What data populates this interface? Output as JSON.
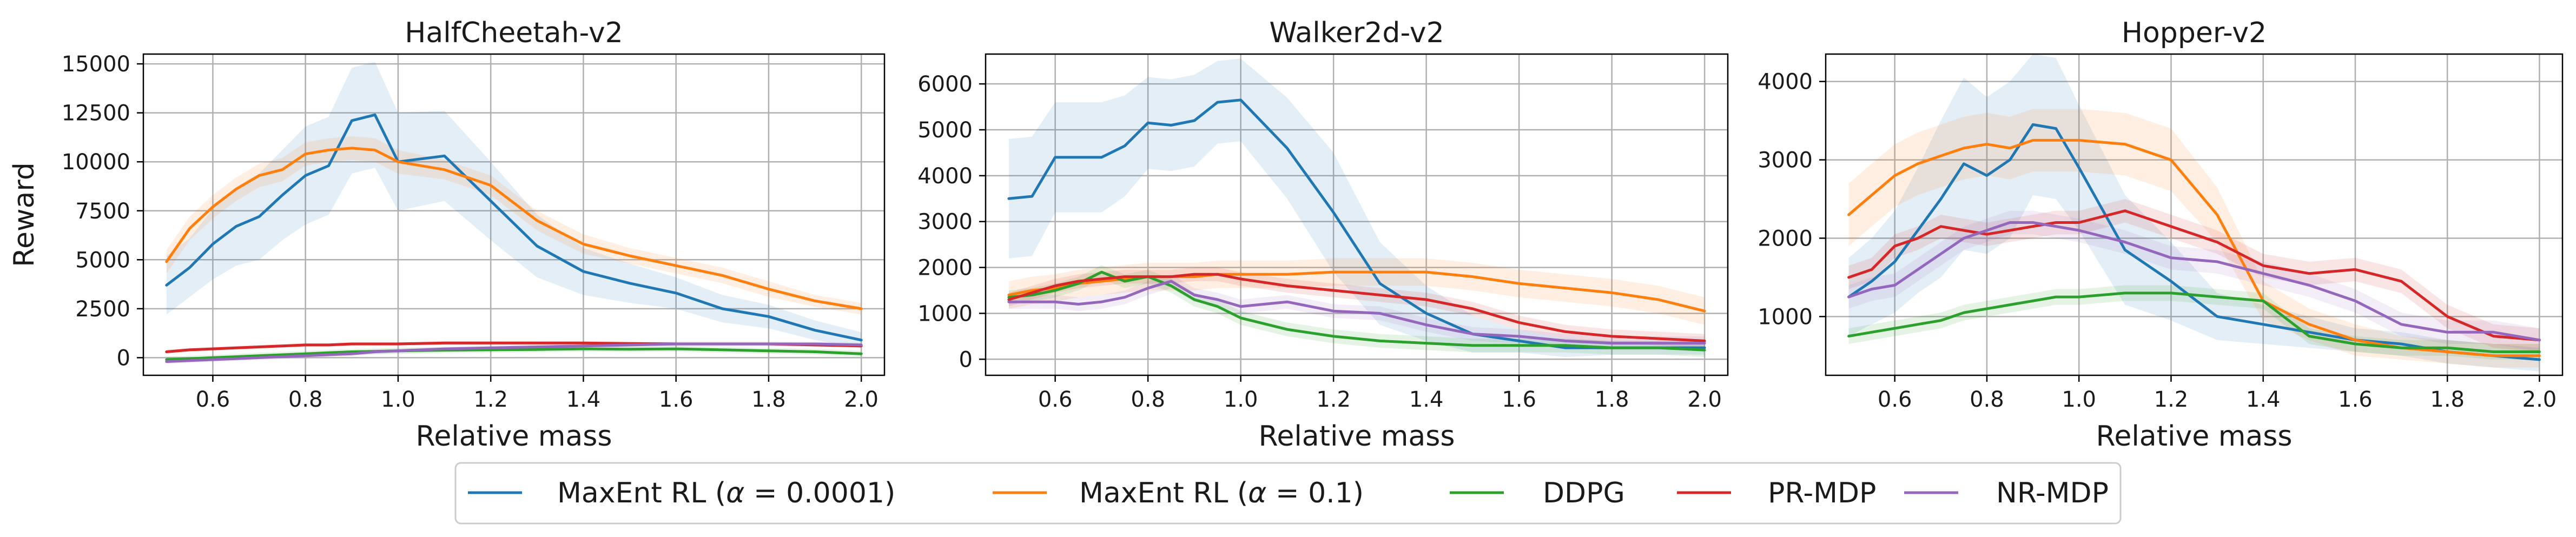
{
  "chart_data": [
    {
      "type": "line",
      "title": "HalfCheetah-v2",
      "xlabel": "Relative mass",
      "ylabel": "Reward",
      "xlim": [
        0.45,
        2.05
      ],
      "ylim": [
        -900,
        15500
      ],
      "xticks": [
        0.6,
        0.8,
        1.0,
        1.2,
        1.4,
        1.6,
        1.8,
        2.0
      ],
      "xtick_labels": [
        "0.6",
        "0.8",
        "1.0",
        "1.2",
        "1.4",
        "1.6",
        "1.8",
        "2.0"
      ],
      "yticks": [
        0,
        2500,
        5000,
        7500,
        10000,
        12500,
        15000
      ],
      "ytick_labels": [
        "0",
        "2500",
        "5000",
        "7500",
        "10000",
        "12500",
        "15000"
      ],
      "grid": true,
      "x": [
        0.5,
        0.55,
        0.6,
        0.65,
        0.7,
        0.75,
        0.8,
        0.85,
        0.9,
        0.95,
        1.0,
        1.1,
        1.2,
        1.3,
        1.4,
        1.5,
        1.6,
        1.7,
        1.8,
        1.9,
        2.0
      ],
      "series": [
        {
          "name": "MaxEnt RL (α = 0.0001)",
          "values": [
            3700,
            4600,
            5800,
            6700,
            7200,
            8300,
            9300,
            9800,
            12100,
            12400,
            10000,
            10300,
            8000,
            5700,
            4400,
            3800,
            3300,
            2500,
            2100,
            1400,
            900
          ],
          "band": [
            1500,
            1500,
            1800,
            2000,
            2200,
            2300,
            2500,
            2500,
            2700,
            2700,
            2500,
            2300,
            2000,
            1600,
            1200,
            1000,
            800,
            700,
            600,
            500,
            400
          ]
        },
        {
          "name": "MaxEnt RL (α = 0.1)",
          "values": [
            4900,
            6600,
            7700,
            8600,
            9300,
            9600,
            10400,
            10600,
            10700,
            10600,
            10000,
            9600,
            8800,
            7000,
            5800,
            5200,
            4700,
            4200,
            3500,
            2900,
            2500
          ],
          "band": [
            600,
            600,
            600,
            600,
            600,
            600,
            600,
            600,
            600,
            600,
            600,
            500,
            500,
            500,
            500,
            400,
            400,
            400,
            400,
            300,
            300
          ]
        },
        {
          "name": "DDPG",
          "values": [
            -100,
            -50,
            0,
            50,
            100,
            150,
            200,
            250,
            300,
            320,
            350,
            380,
            400,
            420,
            450,
            430,
            450,
            400,
            350,
            300,
            200
          ],
          "band": [
            150,
            150,
            150,
            150,
            150,
            150,
            150,
            150,
            150,
            150,
            150,
            150,
            150,
            150,
            150,
            150,
            150,
            150,
            150,
            150,
            150
          ]
        },
        {
          "name": "PR-MDP",
          "values": [
            300,
            400,
            450,
            500,
            550,
            600,
            650,
            650,
            700,
            700,
            700,
            750,
            750,
            750,
            750,
            720,
            700,
            700,
            700,
            650,
            600
          ],
          "band": [
            100,
            100,
            100,
            100,
            100,
            100,
            100,
            100,
            100,
            100,
            100,
            100,
            100,
            100,
            100,
            100,
            100,
            100,
            100,
            100,
            100
          ]
        },
        {
          "name": "NR-MDP",
          "values": [
            -200,
            -150,
            -100,
            -50,
            0,
            50,
            100,
            150,
            200,
            300,
            350,
            450,
            500,
            550,
            600,
            650,
            700,
            700,
            700,
            700,
            650
          ],
          "band": [
            120,
            120,
            120,
            120,
            120,
            120,
            120,
            120,
            120,
            120,
            120,
            120,
            120,
            120,
            120,
            120,
            120,
            120,
            120,
            120,
            120
          ]
        }
      ]
    },
    {
      "type": "line",
      "title": "Walker2d-v2",
      "xlabel": "Relative mass",
      "ylabel": "",
      "xlim": [
        0.45,
        2.05
      ],
      "ylim": [
        -350,
        6650
      ],
      "xticks": [
        0.6,
        0.8,
        1.0,
        1.2,
        1.4,
        1.6,
        1.8,
        2.0
      ],
      "xtick_labels": [
        "0.6",
        "0.8",
        "1.0",
        "1.2",
        "1.4",
        "1.6",
        "1.8",
        "2.0"
      ],
      "yticks": [
        0,
        1000,
        2000,
        3000,
        4000,
        5000,
        6000
      ],
      "ytick_labels": [
        "0",
        "1000",
        "2000",
        "3000",
        "4000",
        "5000",
        "6000"
      ],
      "grid": true,
      "x": [
        0.5,
        0.55,
        0.6,
        0.65,
        0.7,
        0.75,
        0.8,
        0.85,
        0.9,
        0.95,
        1.0,
        1.1,
        1.2,
        1.3,
        1.4,
        1.5,
        1.6,
        1.7,
        1.8,
        1.9,
        2.0
      ],
      "series": [
        {
          "name": "MaxEnt RL (α = 0.0001)",
          "values": [
            3500,
            3550,
            4400,
            4400,
            4400,
            4650,
            5150,
            5100,
            5200,
            5600,
            5650,
            4600,
            3200,
            1650,
            1000,
            550,
            400,
            250,
            250,
            250,
            250
          ],
          "band": [
            1300,
            1300,
            1200,
            1200,
            1200,
            1100,
            1000,
            1000,
            1000,
            900,
            900,
            1100,
            1300,
            900,
            600,
            400,
            250,
            200,
            150,
            150,
            150
          ]
        },
        {
          "name": "MaxEnt RL (α = 0.1)",
          "values": [
            1400,
            1500,
            1550,
            1650,
            1700,
            1750,
            1800,
            1800,
            1800,
            1850,
            1850,
            1850,
            1900,
            1900,
            1900,
            1800,
            1650,
            1550,
            1450,
            1300,
            1050
          ],
          "band": [
            300,
            300,
            300,
            300,
            300,
            300,
            300,
            300,
            300,
            300,
            300,
            300,
            300,
            300,
            300,
            300,
            300,
            300,
            300,
            300,
            300
          ]
        },
        {
          "name": "DDPG",
          "values": [
            1350,
            1400,
            1500,
            1650,
            1900,
            1700,
            1800,
            1600,
            1300,
            1150,
            900,
            650,
            500,
            400,
            350,
            300,
            300,
            300,
            250,
            250,
            200
          ],
          "band": [
            150,
            150,
            150,
            150,
            150,
            150,
            150,
            150,
            150,
            150,
            150,
            150,
            150,
            150,
            150,
            150,
            150,
            150,
            150,
            150,
            150
          ]
        },
        {
          "name": "PR-MDP",
          "values": [
            1300,
            1450,
            1600,
            1700,
            1750,
            1800,
            1800,
            1800,
            1850,
            1850,
            1750,
            1600,
            1500,
            1400,
            1300,
            1100,
            800,
            600,
            500,
            450,
            400
          ],
          "band": [
            150,
            150,
            150,
            150,
            150,
            150,
            150,
            150,
            150,
            150,
            150,
            150,
            150,
            150,
            150,
            150,
            150,
            150,
            150,
            150,
            150
          ]
        },
        {
          "name": "NR-MDP",
          "values": [
            1250,
            1250,
            1250,
            1200,
            1250,
            1350,
            1550,
            1700,
            1400,
            1300,
            1150,
            1250,
            1050,
            1000,
            750,
            550,
            500,
            400,
            350,
            350,
            350
          ],
          "band": [
            150,
            150,
            150,
            150,
            150,
            150,
            150,
            150,
            150,
            150,
            150,
            150,
            150,
            150,
            150,
            150,
            150,
            150,
            150,
            150,
            150
          ]
        }
      ]
    },
    {
      "type": "line",
      "title": "Hopper-v2",
      "xlabel": "Relative mass",
      "ylabel": "",
      "xlim": [
        0.45,
        2.05
      ],
      "ylim": [
        250,
        4350
      ],
      "xticks": [
        0.6,
        0.8,
        1.0,
        1.2,
        1.4,
        1.6,
        1.8,
        2.0
      ],
      "xtick_labels": [
        "0.6",
        "0.8",
        "1.0",
        "1.2",
        "1.4",
        "1.6",
        "1.8",
        "2.0"
      ],
      "yticks": [
        1000,
        2000,
        3000,
        4000
      ],
      "ytick_labels": [
        "1000",
        "2000",
        "3000",
        "4000"
      ],
      "grid": true,
      "x": [
        0.5,
        0.55,
        0.6,
        0.65,
        0.7,
        0.75,
        0.8,
        0.85,
        0.9,
        0.95,
        1.0,
        1.1,
        1.2,
        1.3,
        1.4,
        1.5,
        1.6,
        1.7,
        1.8,
        1.9,
        2.0
      ],
      "series": [
        {
          "name": "MaxEnt RL (α = 0.0001)",
          "values": [
            1250,
            1450,
            1700,
            2100,
            2500,
            2950,
            2800,
            3000,
            3450,
            3400,
            2900,
            1850,
            1450,
            1000,
            900,
            800,
            700,
            650,
            550,
            500,
            450
          ],
          "band": [
            500,
            550,
            650,
            800,
            1000,
            1100,
            1000,
            1000,
            900,
            900,
            800,
            700,
            500,
            300,
            250,
            200,
            150,
            150,
            150,
            150,
            150
          ]
        },
        {
          "name": "MaxEnt RL (α = 0.1)",
          "values": [
            2300,
            2550,
            2800,
            2950,
            3050,
            3150,
            3200,
            3150,
            3250,
            3250,
            3250,
            3200,
            3000,
            2300,
            1200,
            900,
            700,
            600,
            550,
            500,
            500
          ],
          "band": [
            400,
            400,
            400,
            400,
            400,
            400,
            400,
            400,
            400,
            400,
            400,
            400,
            400,
            350,
            250,
            200,
            200,
            150,
            150,
            150,
            150
          ]
        },
        {
          "name": "DDPG",
          "values": [
            750,
            800,
            850,
            900,
            950,
            1050,
            1100,
            1150,
            1200,
            1250,
            1250,
            1300,
            1300,
            1250,
            1200,
            750,
            650,
            600,
            600,
            550,
            550
          ],
          "band": [
            100,
            100,
            100,
            100,
            100,
            100,
            100,
            100,
            100,
            100,
            100,
            100,
            100,
            100,
            100,
            100,
            100,
            100,
            100,
            100,
            100
          ]
        },
        {
          "name": "PR-MDP",
          "values": [
            1500,
            1600,
            1900,
            2000,
            2150,
            2100,
            2050,
            2100,
            2150,
            2200,
            2200,
            2350,
            2150,
            1950,
            1650,
            1550,
            1600,
            1450,
            1000,
            750,
            700
          ],
          "band": [
            150,
            150,
            150,
            150,
            150,
            150,
            150,
            150,
            150,
            150,
            150,
            150,
            150,
            150,
            150,
            150,
            150,
            150,
            150,
            150,
            150
          ]
        },
        {
          "name": "NR-MDP",
          "values": [
            1250,
            1350,
            1400,
            1600,
            1800,
            2000,
            2100,
            2200,
            2200,
            2150,
            2100,
            1950,
            1750,
            1700,
            1550,
            1400,
            1200,
            900,
            800,
            800,
            700
          ],
          "band": [
            150,
            150,
            150,
            150,
            150,
            150,
            150,
            150,
            150,
            150,
            150,
            150,
            150,
            150,
            150,
            150,
            150,
            150,
            150,
            150,
            150
          ]
        }
      ]
    }
  ],
  "legend": {
    "position": "bottom-center",
    "entries": [
      {
        "label_prefix": "MaxEnt RL (",
        "symbol": "α",
        "label_suffix": " = 0.0001)",
        "color": "#1f77b4"
      },
      {
        "label_prefix": "MaxEnt RL (",
        "symbol": "α",
        "label_suffix": " = 0.1)",
        "color": "#ff7f0e"
      },
      {
        "label_prefix": "DDPG",
        "symbol": "",
        "label_suffix": "",
        "color": "#2ca02c"
      },
      {
        "label_prefix": "PR-MDP",
        "symbol": "",
        "label_suffix": "",
        "color": "#d62728"
      },
      {
        "label_prefix": "NR-MDP",
        "symbol": "",
        "label_suffix": "",
        "color": "#9467bd"
      }
    ]
  }
}
